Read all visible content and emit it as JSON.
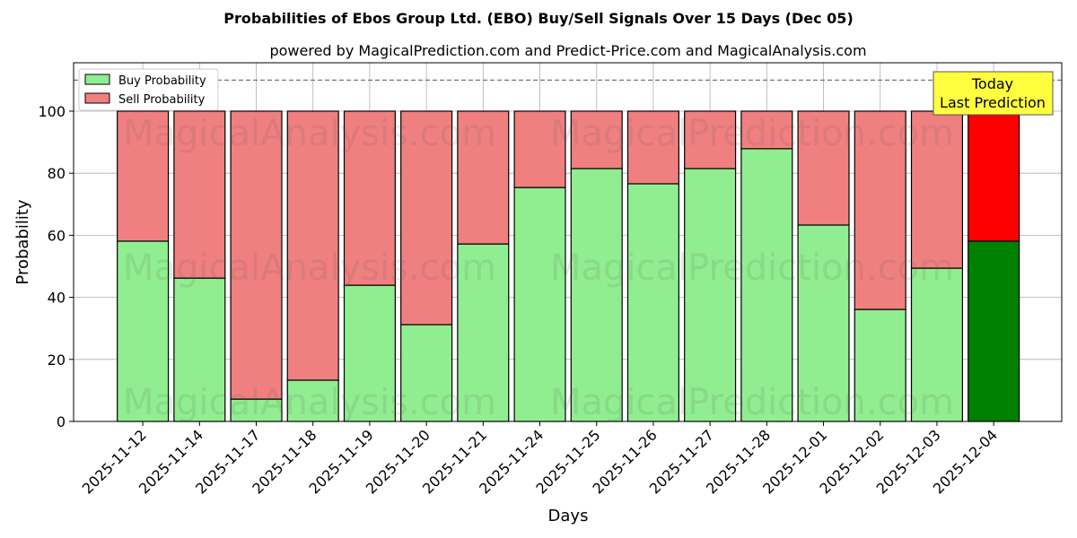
{
  "chart_data": {
    "type": "bar",
    "title": "Probabilities of Ebos Group Ltd. (EBO) Buy/Sell Signals Over 15 Days (Dec 05)",
    "subtitle": "powered by MagicalPrediction.com and Predict-Price.com and MagicalAnalysis.com",
    "xlabel": "Days",
    "ylabel": "Probability",
    "ylim": [
      0,
      115.6
    ],
    "yticks": [
      0,
      20,
      40,
      60,
      80,
      100
    ],
    "categories": [
      "2025-11-12",
      "2025-11-14",
      "2025-11-17",
      "2025-11-18",
      "2025-11-19",
      "2025-11-20",
      "2025-11-21",
      "2025-11-24",
      "2025-11-25",
      "2025-11-26",
      "2025-11-27",
      "2025-11-28",
      "2025-12-01",
      "2025-12-02",
      "2025-12-03",
      "2025-12-04"
    ],
    "series": [
      {
        "name": "Buy Probability",
        "color": "#90ee90",
        "values": [
          58.1,
          46.2,
          7.2,
          13.3,
          43.9,
          31.2,
          57.2,
          75.4,
          81.5,
          76.6,
          81.5,
          87.9,
          63.3,
          36.1,
          49.4,
          58.1
        ]
      },
      {
        "name": "Sell Probability",
        "color": "#f08080",
        "values": [
          41.9,
          53.8,
          92.8,
          86.7,
          56.1,
          68.8,
          42.8,
          24.6,
          18.5,
          23.4,
          18.5,
          12.1,
          36.7,
          63.9,
          50.6,
          41.9
        ]
      }
    ],
    "highlight_colors": {
      "buy": "#008000",
      "sell": "#ff0000"
    },
    "reference_line": 110,
    "legend_position": "top-left",
    "annotation": [
      "Today",
      "Last Prediction"
    ],
    "watermarks": [
      "MagicalAnalysis.com",
      "MagicalPrediction.com"
    ],
    "grid": true
  }
}
